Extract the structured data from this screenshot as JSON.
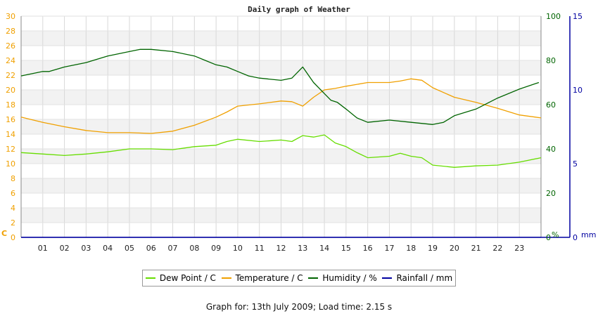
{
  "chart_data": {
    "type": "line",
    "title": "Daily graph of Weather",
    "x_ticks": [
      "01",
      "02",
      "03",
      "04",
      "05",
      "06",
      "07",
      "08",
      "09",
      "10",
      "11",
      "12",
      "13",
      "14",
      "15",
      "16",
      "17",
      "18",
      "19",
      "20",
      "21",
      "22",
      "23"
    ],
    "x_range": [
      0,
      24
    ],
    "left_axis": {
      "unit_label": "C",
      "range": [
        0,
        30
      ],
      "ticks": [
        0,
        2,
        4,
        6,
        8,
        10,
        12,
        14,
        16,
        18,
        20,
        22,
        24,
        26,
        28,
        30
      ],
      "color": "#f0a000"
    },
    "humidity_axis": {
      "unit_label": "%",
      "range": [
        0,
        100
      ],
      "ticks": [
        0,
        20,
        40,
        60,
        80,
        100
      ],
      "color": "#006400"
    },
    "rain_axis": {
      "unit_label": "mm",
      "range": [
        0,
        15
      ],
      "ticks": [
        0,
        5,
        10,
        15
      ],
      "color": "#0000a0"
    },
    "grid": true,
    "series": [
      {
        "name": "Dew Point / C",
        "axis": "left",
        "color": "#66dd00",
        "x": [
          0,
          1,
          2,
          3,
          4,
          5,
          6,
          7,
          8,
          9,
          9.5,
          10,
          11,
          12,
          12.5,
          13,
          13.5,
          14,
          14.5,
          15,
          15.5,
          16,
          17,
          17.5,
          18,
          18.5,
          19,
          20,
          21,
          22,
          23,
          24
        ],
        "values": [
          11.5,
          11.3,
          11.1,
          11.3,
          11.6,
          12.0,
          12.0,
          11.9,
          12.3,
          12.5,
          13.0,
          13.3,
          13.0,
          13.2,
          13.0,
          13.8,
          13.6,
          13.9,
          12.8,
          12.3,
          11.5,
          10.8,
          11.0,
          11.4,
          11.0,
          10.8,
          9.8,
          9.5,
          9.7,
          9.8,
          10.2,
          10.8
        ]
      },
      {
        "name": "Temperature / C",
        "axis": "left",
        "color": "#f0a000",
        "x": [
          0,
          1,
          2,
          3,
          4,
          5,
          6,
          7,
          8,
          9,
          9.5,
          10,
          11,
          12,
          12.5,
          13,
          13.5,
          14,
          14.5,
          15,
          16,
          17,
          17.5,
          18,
          18.5,
          19,
          20,
          21,
          22,
          23,
          24
        ],
        "values": [
          16.3,
          15.6,
          15.0,
          14.5,
          14.2,
          14.2,
          14.1,
          14.4,
          15.2,
          16.3,
          17.0,
          17.8,
          18.1,
          18.5,
          18.4,
          17.8,
          19.0,
          20.0,
          20.2,
          20.5,
          21.0,
          21.0,
          21.2,
          21.5,
          21.3,
          20.3,
          19.0,
          18.3,
          17.5,
          16.6,
          16.2
        ]
      },
      {
        "name": "Humidity / %",
        "axis": "humidity",
        "color": "#006400",
        "x": [
          0,
          1,
          1.3,
          2,
          3,
          4,
          5,
          5.5,
          6,
          7,
          8,
          8.5,
          9,
          9.5,
          10,
          10.5,
          11,
          12,
          12.5,
          13,
          13.5,
          14,
          14.3,
          14.6,
          15,
          15.5,
          16,
          17,
          18,
          19,
          19.5,
          20,
          21,
          22,
          23,
          23.9
        ],
        "values": [
          73,
          75,
          75,
          77,
          79,
          82,
          84,
          85,
          85,
          84,
          82,
          80,
          78,
          77,
          75,
          73,
          72,
          71,
          72,
          77,
          70,
          65,
          62,
          61,
          58,
          54,
          52,
          53,
          52,
          51,
          52,
          55,
          58,
          63,
          67,
          70
        ]
      },
      {
        "name": "Rainfall / mm",
        "axis": "rain",
        "color": "#0000a0",
        "x": [
          0,
          24
        ],
        "values": [
          0,
          0
        ]
      }
    ]
  },
  "footer": {
    "text": "Graph for: 13th July 2009; Load time: 2.15 s"
  }
}
